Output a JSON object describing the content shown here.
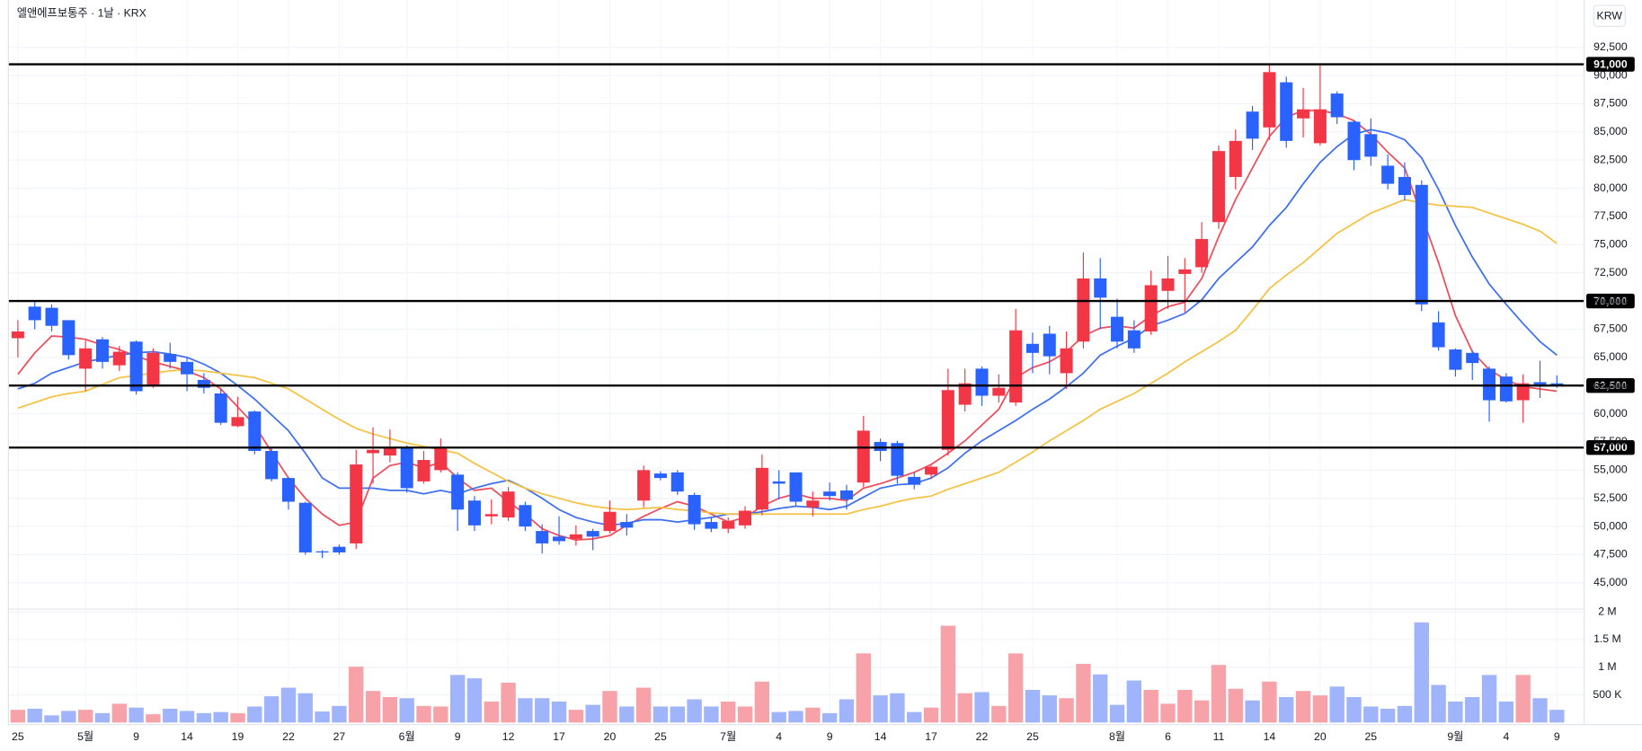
{
  "chart_data": {
    "type": "candlestick",
    "title": "엘앤에프보통주 · 1날 · KRX",
    "currency": "KRW",
    "up_color": "#f23645",
    "down_color": "#2962ff",
    "volume_up_color": "#f7a1a8",
    "volume_down_color": "#9fb4fa",
    "grid": true,
    "categories": [
      "25",
      null,
      null,
      null,
      "5월",
      null,
      null,
      "9",
      null,
      null,
      "14",
      null,
      null,
      "19",
      null,
      null,
      "22",
      null,
      null,
      "27",
      null,
      null,
      null,
      "6월",
      null,
      null,
      "9",
      null,
      null,
      "12",
      null,
      null,
      "17",
      null,
      null,
      "20",
      null,
      null,
      "25",
      null,
      null,
      null,
      "7월",
      null,
      null,
      "4",
      null,
      null,
      "9",
      null,
      null,
      "14",
      null,
      null,
      "17",
      null,
      null,
      "22",
      null,
      null,
      "25",
      null,
      null,
      null,
      null,
      "8월",
      null,
      null,
      "6",
      null,
      null,
      "11",
      null,
      null,
      "14",
      null,
      null,
      "20",
      null,
      null,
      "25",
      null,
      null,
      null,
      null,
      "9월",
      null,
      null,
      "4",
      null,
      null,
      "9"
    ],
    "open": [
      66700,
      69500,
      69400,
      68300,
      64000,
      66600,
      64300,
      66400,
      62600,
      65300,
      64600,
      63000,
      61800,
      58900,
      60200,
      56700,
      54300,
      52100,
      47800,
      48200,
      48500,
      56500,
      56300,
      57000,
      54000,
      55000,
      54600,
      52300,
      50900,
      50800,
      51900,
      49600,
      49100,
      48900,
      49600,
      49600,
      50400,
      52300,
      54700,
      54800,
      52800,
      50400,
      49800,
      50100,
      51500,
      54000,
      54800,
      51700,
      53100,
      53200,
      53900,
      57500,
      57400,
      54400,
      54600,
      56800,
      60800,
      64000,
      61600,
      61000,
      66200,
      67100,
      63600,
      66400,
      72000,
      68600,
      67400,
      67300,
      70900,
      72400,
      73000,
      77000,
      81000,
      86800,
      85400,
      89400,
      86200,
      84000,
      88400,
      85900,
      84800,
      82000,
      81000,
      80300,
      68100,
      65700,
      65400,
      64000,
      63300,
      61200,
      62800,
      62700
    ],
    "high": [
      68300,
      70000,
      69700,
      68300,
      66500,
      66800,
      66000,
      66500,
      65800,
      66300,
      65000,
      63600,
      62200,
      61500,
      60300,
      57000,
      54400,
      52200,
      47900,
      48400,
      56800,
      58800,
      58600,
      57200,
      56700,
      57800,
      54800,
      52700,
      52400,
      53500,
      52200,
      50200,
      50900,
      50100,
      49800,
      52300,
      51100,
      55400,
      54900,
      55000,
      53000,
      50800,
      50800,
      51800,
      56400,
      55000,
      54800,
      53100,
      53900,
      53700,
      59800,
      57800,
      57600,
      54800,
      55400,
      64000,
      64000,
      64200,
      63500,
      69300,
      67200,
      67800,
      67300,
      74300,
      73800,
      70200,
      68300,
      72700,
      74000,
      73800,
      77000,
      83800,
      85200,
      87300,
      91000,
      89900,
      88900,
      91000,
      88600,
      86000,
      86200,
      83000,
      82300,
      80700,
      69100,
      65800,
      65600,
      64200,
      63600,
      63500,
      64700,
      63400
    ],
    "low": [
      65000,
      67500,
      67300,
      64800,
      62000,
      64000,
      63800,
      61700,
      62300,
      64000,
      62000,
      61800,
      59000,
      58800,
      56400,
      54000,
      51500,
      47500,
      47200,
      47500,
      48000,
      53800,
      55700,
      53000,
      53800,
      54800,
      49600,
      49600,
      50200,
      50500,
      49600,
      47600,
      48400,
      48300,
      47900,
      49400,
      49200,
      51700,
      54100,
      52800,
      49700,
      49500,
      49400,
      49800,
      51000,
      52400,
      51800,
      50900,
      52300,
      51500,
      53500,
      55800,
      53800,
      53300,
      54200,
      56300,
      60200,
      60700,
      61000,
      60700,
      63600,
      63500,
      62200,
      65800,
      67500,
      65800,
      65400,
      67000,
      69300,
      69000,
      72500,
      76400,
      79900,
      83400,
      84300,
      83600,
      84500,
      83800,
      85700,
      81600,
      82000,
      79900,
      78900,
      69100,
      65600,
      63300,
      63000,
      59300,
      61000,
      59200,
      61400,
      62300
    ],
    "close": [
      67300,
      68300,
      67800,
      65200,
      65800,
      64600,
      65500,
      62000,
      65400,
      64600,
      63500,
      62300,
      59200,
      59700,
      56700,
      54200,
      52200,
      47700,
      47700,
      47700,
      55500,
      56800,
      57000,
      53400,
      55900,
      57000,
      51500,
      50100,
      51100,
      53100,
      50000,
      48500,
      48700,
      49300,
      49100,
      51300,
      49900,
      55000,
      54300,
      53100,
      50200,
      49800,
      50500,
      51400,
      55200,
      53800,
      52200,
      52300,
      52700,
      52400,
      58500,
      56700,
      54500,
      53700,
      55300,
      62100,
      62700,
      61600,
      62300,
      67400,
      65400,
      65100,
      65800,
      72000,
      70300,
      66400,
      65800,
      71400,
      72000,
      72800,
      75500,
      83300,
      84200,
      84400,
      90300,
      84200,
      87000,
      87000,
      86300,
      82500,
      82800,
      80400,
      79400,
      69700,
      65900,
      63900,
      64500,
      61200,
      61100,
      62700,
      62400,
      62500
    ],
    "volume": [
      230000,
      250000,
      130000,
      210000,
      230000,
      170000,
      340000,
      270000,
      150000,
      250000,
      210000,
      170000,
      190000,
      170000,
      290000,
      475000,
      630000,
      530000,
      200000,
      300000,
      1010000,
      570000,
      460000,
      440000,
      300000,
      290000,
      860000,
      800000,
      380000,
      720000,
      440000,
      440000,
      380000,
      230000,
      320000,
      570000,
      290000,
      630000,
      290000,
      290000,
      420000,
      290000,
      380000,
      290000,
      740000,
      190000,
      210000,
      270000,
      170000,
      420000,
      1250000,
      490000,
      530000,
      190000,
      270000,
      1750000,
      530000,
      550000,
      300000,
      1250000,
      590000,
      490000,
      440000,
      1060000,
      870000,
      320000,
      760000,
      590000,
      340000,
      590000,
      400000,
      1040000,
      610000,
      400000,
      740000,
      460000,
      570000,
      490000,
      650000,
      460000,
      290000,
      250000,
      300000,
      1810000,
      680000,
      380000,
      460000,
      860000,
      380000,
      860000,
      440000,
      230000
    ],
    "lines": [
      {
        "color": "#f04d5a",
        "values": [
          63500,
          65400,
          66900,
          66800,
          66600,
          66100,
          65700,
          65100,
          64600,
          64200,
          63800,
          63200,
          62200,
          60600,
          59000,
          56600,
          54300,
          52500,
          51100,
          50100,
          50400,
          54300,
          55400,
          55700,
          55200,
          55700,
          54300,
          53200,
          53400,
          52200,
          51100,
          49800,
          49200,
          48800,
          48900,
          49200,
          50100,
          50900,
          51600,
          52200,
          51800,
          51100,
          50400,
          50800,
          51800,
          52500,
          52900,
          52500,
          52500,
          52300,
          53400,
          53800,
          54300,
          54800,
          55500,
          56500,
          57600,
          59000,
          60400,
          63200,
          64100,
          64600,
          65500,
          66900,
          67600,
          67800,
          67600,
          68700,
          69500,
          69900,
          72000,
          75700,
          79000,
          81800,
          84600,
          86300,
          86900,
          86900,
          86600,
          86000,
          84800,
          83200,
          81800,
          77600,
          73400,
          68700,
          65500,
          63900,
          63000,
          62400,
          62200,
          62000
        ]
      },
      {
        "color": "#3d6ff0",
        "values": [
          62200,
          62700,
          63600,
          64100,
          64600,
          64900,
          65200,
          65400,
          65500,
          65300,
          65000,
          64400,
          63600,
          62500,
          61300,
          59900,
          58500,
          56500,
          54300,
          53400,
          53400,
          53400,
          53200,
          53200,
          52900,
          53200,
          52900,
          53400,
          53800,
          54100,
          53400,
          52500,
          51500,
          50800,
          50400,
          50100,
          50300,
          50600,
          50600,
          50400,
          50600,
          50800,
          51100,
          51100,
          51300,
          51600,
          51800,
          51700,
          51500,
          51800,
          52600,
          53400,
          53700,
          53800,
          54300,
          55200,
          56500,
          57600,
          58500,
          59400,
          60400,
          61300,
          62400,
          63600,
          65200,
          66000,
          66700,
          67800,
          68300,
          68900,
          70100,
          72000,
          73400,
          74800,
          76700,
          78300,
          80400,
          82300,
          83700,
          84800,
          85200,
          84900,
          84300,
          82700,
          79900,
          76700,
          73900,
          71500,
          69700,
          68000,
          66400,
          65200
        ]
      },
      {
        "color": "#f5c243",
        "values": [
          60500,
          61000,
          61500,
          61800,
          62000,
          62600,
          63200,
          63400,
          63600,
          63800,
          63900,
          63800,
          63600,
          63400,
          63200,
          62700,
          62200,
          61300,
          60400,
          59500,
          58700,
          58200,
          57800,
          57400,
          57100,
          56800,
          56500,
          55600,
          54800,
          54000,
          53400,
          52900,
          52500,
          52100,
          51800,
          51600,
          51500,
          51600,
          51700,
          51500,
          51400,
          51200,
          51100,
          51100,
          51100,
          51100,
          51100,
          51100,
          51100,
          51100,
          51500,
          51800,
          52200,
          52500,
          52700,
          53300,
          53800,
          54300,
          54800,
          55700,
          56600,
          57600,
          58500,
          59400,
          60400,
          61100,
          61800,
          62700,
          63600,
          64600,
          65500,
          66400,
          67400,
          69200,
          71100,
          72300,
          73400,
          74700,
          76000,
          76900,
          77800,
          78400,
          79000,
          78700,
          78500,
          78400,
          78300,
          77800,
          77300,
          76800,
          76200,
          75100
        ]
      }
    ],
    "hlines": [
      {
        "value": 91000,
        "label": "91,000"
      },
      {
        "value": 70000,
        "label": "70,000"
      },
      {
        "value": 62500,
        "label": "62,500"
      },
      {
        "value": 57000,
        "label": "57,000"
      }
    ],
    "ylim": [
      42670,
      96690
    ],
    "yticks": [
      {
        "value": 45000,
        "label": "45,000"
      },
      {
        "value": 47500,
        "label": "47,500"
      },
      {
        "value": 50000,
        "label": "50,000"
      },
      {
        "value": 52500,
        "label": "52,500"
      },
      {
        "value": 55000,
        "label": "55,000"
      },
      {
        "value": 57500,
        "label": "57,500"
      },
      {
        "value": 60000,
        "label": "60,000"
      },
      {
        "value": 62500,
        "label": "62,500"
      },
      {
        "value": 65000,
        "label": "65,000"
      },
      {
        "value": 67500,
        "label": "67,500"
      },
      {
        "value": 70000,
        "label": "70,000"
      },
      {
        "value": 72500,
        "label": "72,500"
      },
      {
        "value": 75000,
        "label": "75,000"
      },
      {
        "value": 77500,
        "label": "77,500"
      },
      {
        "value": 80000,
        "label": "80,000"
      },
      {
        "value": 82500,
        "label": "82,500"
      },
      {
        "value": 85000,
        "label": "85,000"
      },
      {
        "value": 87500,
        "label": "87,500"
      },
      {
        "value": 90000,
        "label": "90,000"
      },
      {
        "value": 92500,
        "label": "92,500"
      }
    ],
    "volume_lim": [
      0,
      2050000
    ],
    "volume_ticks": [
      {
        "value": 500000,
        "label": "500 K"
      },
      {
        "value": 1000000,
        "label": "1 M"
      },
      {
        "value": 1500000,
        "label": "1.5 M"
      },
      {
        "value": 2000000,
        "label": "2 M"
      }
    ]
  }
}
